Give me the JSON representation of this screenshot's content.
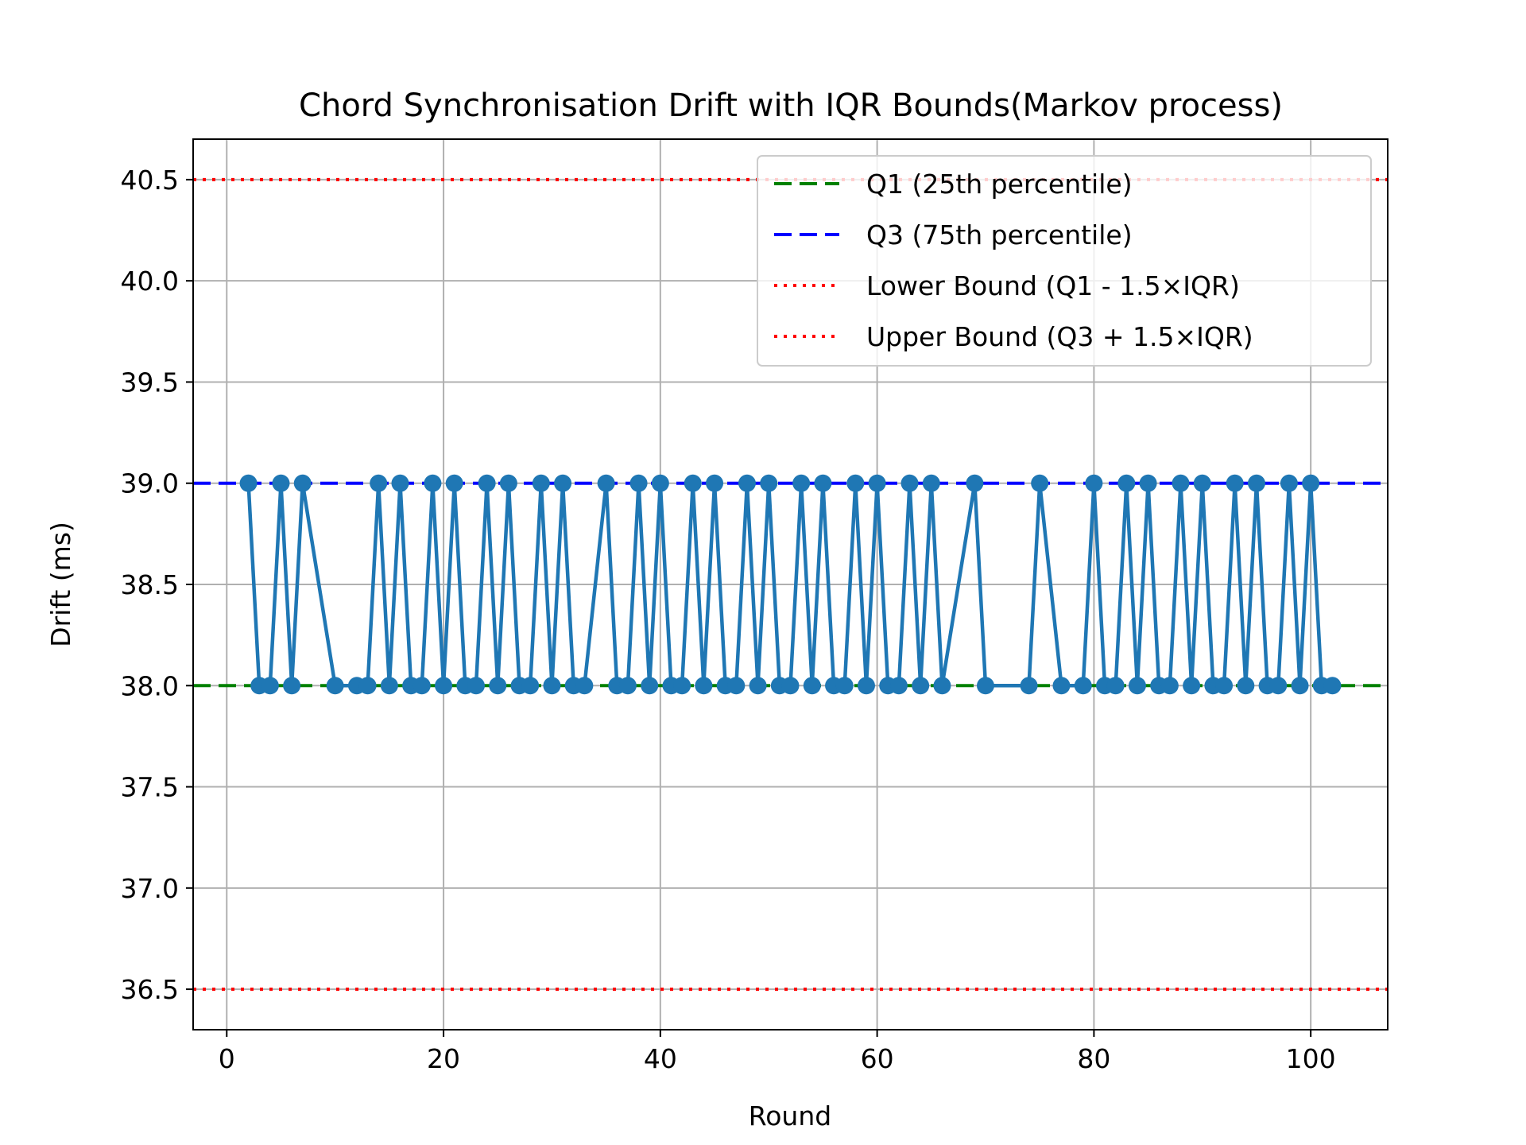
{
  "chart_data": {
    "type": "line",
    "title": "Chord Synchronisation Drift with IQR Bounds(Markov process)",
    "xlabel": "Round",
    "ylabel": "Drift (ms)",
    "xlim": [
      -3.1,
      107.1
    ],
    "ylim": [
      36.3,
      40.7
    ],
    "xticks": [
      "0",
      "20",
      "40",
      "60",
      "80",
      "100"
    ],
    "xtick_values": [
      0,
      20,
      40,
      60,
      80,
      100
    ],
    "yticks": [
      "36.5",
      "37.0",
      "37.5",
      "38.0",
      "38.5",
      "39.0",
      "39.5",
      "40.0",
      "40.5"
    ],
    "ytick_values": [
      36.5,
      37.0,
      37.5,
      38.0,
      38.5,
      39.0,
      39.5,
      40.0,
      40.5
    ],
    "grid": true,
    "legend_position": "top-right",
    "series": [
      {
        "color": "#1f77b4",
        "x": [
          2,
          3,
          4,
          5,
          6,
          7,
          10,
          12,
          13,
          14,
          15,
          16,
          17,
          18,
          19,
          20,
          21,
          22,
          23,
          24,
          25,
          26,
          27,
          28,
          29,
          30,
          31,
          32,
          33,
          35,
          36,
          37,
          38,
          39,
          40,
          41,
          42,
          43,
          44,
          45,
          46,
          47,
          48,
          49,
          50,
          51,
          52,
          53,
          54,
          55,
          56,
          57,
          58,
          59,
          60,
          61,
          62,
          63,
          64,
          65,
          66,
          69,
          70,
          74,
          75,
          77,
          79,
          80,
          81,
          82,
          83,
          84,
          85,
          86,
          87,
          88,
          89,
          90,
          91,
          92,
          93,
          94,
          95,
          96,
          97,
          98,
          99,
          100,
          101,
          102
        ],
        "values": [
          39,
          38,
          38,
          39,
          38,
          39,
          38,
          38,
          38,
          39,
          38,
          39,
          38,
          38,
          39,
          38,
          39,
          38,
          38,
          39,
          38,
          39,
          38,
          38,
          39,
          38,
          39,
          38,
          38,
          39,
          38,
          38,
          39,
          38,
          39,
          38,
          38,
          39,
          38,
          39,
          38,
          38,
          39,
          38,
          39,
          38,
          38,
          39,
          38,
          39,
          38,
          38,
          39,
          38,
          39,
          38,
          38,
          39,
          38,
          39,
          38,
          39,
          38,
          38,
          39,
          38,
          38,
          39,
          38,
          38,
          39,
          38,
          39,
          38,
          38,
          39,
          38,
          39,
          38,
          38,
          39,
          38,
          39,
          38,
          38,
          39,
          38,
          39,
          38,
          38
        ]
      }
    ],
    "reference_lines": [
      {
        "name": "Q1 (25th percentile)",
        "value": 38.0,
        "color": "#008000",
        "style": "dashed"
      },
      {
        "name": "Q3 (75th percentile)",
        "value": 39.0,
        "color": "#0000ff",
        "style": "dashed"
      },
      {
        "name": "Lower Bound (Q1 - 1.5×IQR)",
        "value": 36.5,
        "color": "#ff0000",
        "style": "dotted"
      },
      {
        "name": "Upper Bound (Q3 + 1.5×IQR)",
        "value": 40.5,
        "color": "#ff0000",
        "style": "dotted"
      }
    ]
  }
}
